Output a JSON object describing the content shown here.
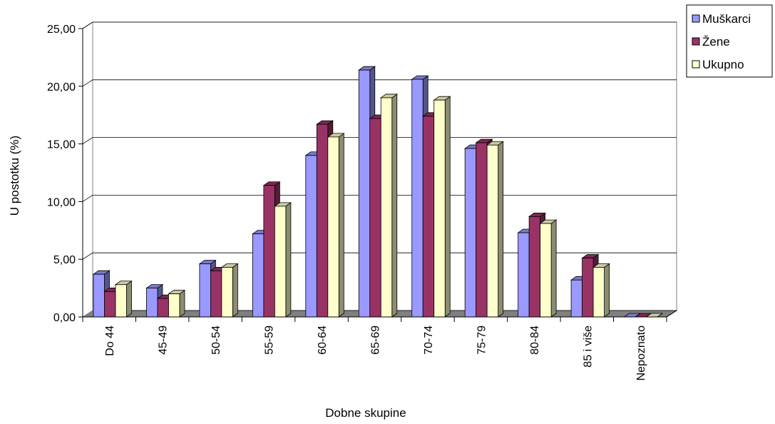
{
  "chart_data": {
    "type": "bar",
    "xlabel": "Dobne skupine",
    "ylabel": "U postotku (%)",
    "ylim": [
      0,
      25
    ],
    "yticks": [
      "0,00",
      "5,00",
      "10,00",
      "15,00",
      "20,00",
      "25,00"
    ],
    "grid": true,
    "legend_position": "top-right",
    "categories": [
      "Do 44",
      "45-49",
      "50-54",
      "55-59",
      "60-64",
      "65-69",
      "70-74",
      "75-79",
      "80-84",
      "85 i više",
      "Nepoznato"
    ],
    "series": [
      {
        "name": "Muškarci",
        "color": "#9999FF",
        "values": [
          3.7,
          2.5,
          4.6,
          7.2,
          14.0,
          21.4,
          20.6,
          14.6,
          7.3,
          3.2,
          0.0
        ]
      },
      {
        "name": "Žene",
        "color": "#993366",
        "values": [
          2.2,
          1.6,
          4.0,
          11.4,
          16.7,
          17.2,
          17.4,
          15.1,
          8.7,
          5.1,
          0.0
        ]
      },
      {
        "name": "Ukupno",
        "color": "#FFFFCC",
        "values": [
          2.8,
          2.0,
          4.3,
          9.6,
          15.6,
          19.0,
          18.8,
          14.9,
          8.1,
          4.3,
          0.0
        ]
      }
    ]
  }
}
